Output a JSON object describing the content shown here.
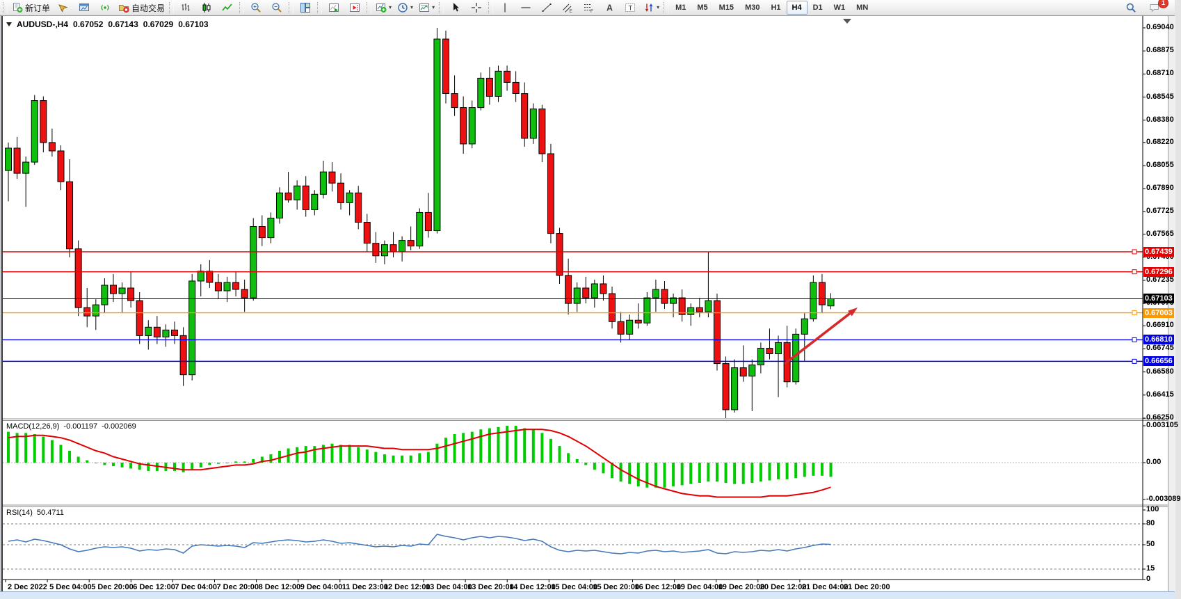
{
  "toolbar": {
    "groups": [
      {
        "items": [
          {
            "name": "new-order",
            "icon": "new-order",
            "label": "新订单"
          },
          {
            "name": "metaeditor",
            "icon": "metaeditor"
          },
          {
            "name": "new-chart",
            "icon": "new-chart"
          },
          {
            "name": "signals",
            "icon": "signals"
          },
          {
            "name": "autotrading",
            "icon": "autotrading",
            "label": "自动交易"
          }
        ]
      },
      {
        "items": [
          {
            "name": "bar-chart-mode",
            "icon": "bar-mode"
          },
          {
            "name": "candlestick-mode",
            "icon": "candle-mode"
          },
          {
            "name": "line-chart-mode",
            "icon": "line-mode"
          }
        ]
      },
      {
        "items": [
          {
            "name": "zoom-in",
            "icon": "zoom-in"
          },
          {
            "name": "zoom-out",
            "icon": "zoom-out"
          }
        ]
      },
      {
        "items": [
          {
            "name": "tile-windows",
            "icon": "tile-windows"
          }
        ]
      },
      {
        "items": [
          {
            "name": "auto-scroll",
            "icon": "auto-scroll"
          },
          {
            "name": "chart-shift",
            "icon": "chart-shift"
          }
        ]
      },
      {
        "items": [
          {
            "name": "indicators",
            "icon": "indicators",
            "dropdown": true
          },
          {
            "name": "periods",
            "icon": "periods",
            "dropdown": true
          },
          {
            "name": "templates",
            "icon": "templates",
            "dropdown": true
          }
        ]
      },
      {
        "items": [
          {
            "name": "cursor",
            "icon": "cursor"
          },
          {
            "name": "crosshair",
            "icon": "crosshair"
          }
        ]
      },
      {
        "items": [
          {
            "name": "vertical-line",
            "icon": "vline"
          },
          {
            "name": "horizontal-line",
            "icon": "hline"
          },
          {
            "name": "trendline",
            "icon": "trendline"
          },
          {
            "name": "equidistant-channel",
            "icon": "channel"
          },
          {
            "name": "fibonacci",
            "icon": "fibonacci"
          },
          {
            "name": "text",
            "icon": "text"
          },
          {
            "name": "text-label",
            "icon": "text-label"
          },
          {
            "name": "arrows",
            "icon": "arrows",
            "dropdown": true
          }
        ]
      }
    ],
    "timeframes": {
      "items": [
        "M1",
        "M5",
        "M15",
        "M30",
        "H1",
        "H4",
        "D1",
        "W1",
        "MN"
      ],
      "active": "H4"
    },
    "right": [
      {
        "name": "search",
        "icon": "search"
      },
      {
        "name": "notifications",
        "icon": "chat",
        "badge": "1"
      }
    ]
  },
  "status_bar": {
    "text": ""
  },
  "chart_data": [
    {
      "type": "candlestick",
      "title": "AUDUSD-,H4",
      "ohlc_display": {
        "open": "0.67052",
        "high": "0.67143",
        "low": "0.67029",
        "close": "0.67103"
      },
      "x_labels": [
        "2 Dec 2022",
        "5 Dec 04:00",
        "5 Dec 20:00",
        "6 Dec 12:00",
        "7 Dec 04:00",
        "7 Dec 20:00",
        "8 Dec 12:00",
        "9 Dec 04:00",
        "11 Dec 23:00",
        "12 Dec 12:00",
        "13 Dec 04:00",
        "13 Dec 20:00",
        "14 Dec 12:00",
        "15 Dec 04:00",
        "15 Dec 20:00",
        "16 Dec 12:00",
        "19 Dec 04:00",
        "19 Dec 20:00",
        "20 Dec 12:00",
        "21 Dec 04:00",
        "21 Dec 20:00"
      ],
      "ylim": [
        0.6625,
        0.6904
      ],
      "y_ticks": [
        "0.69040",
        "0.68875",
        "0.68710",
        "0.68545",
        "0.68380",
        "0.68220",
        "0.68055",
        "0.67890",
        "0.67725",
        "0.67565",
        "0.67400",
        "0.67235",
        "0.67070",
        "0.66910",
        "0.66745",
        "0.66580",
        "0.66415",
        "0.66250"
      ],
      "bull_color": "#0EBF0E",
      "bear_color": "#EE1111",
      "hlines": [
        {
          "price": 0.67439,
          "label": "0.67439",
          "color": "#E60000"
        },
        {
          "price": 0.67296,
          "label": "0.67296",
          "color": "#E60000"
        },
        {
          "price": 0.67003,
          "label": "0.67003",
          "color": "#FF9900"
        },
        {
          "price": 0.6681,
          "label": "0.66810",
          "color": "#0000E8"
        },
        {
          "price": 0.66656,
          "label": "0.66656",
          "color": "#0000E8"
        }
      ],
      "current_price": {
        "price": 0.67103,
        "label": "0.67103",
        "color": "#000000"
      },
      "arrow": {
        "from": [
          1128,
          523
        ],
        "to": [
          1233,
          442
        ],
        "color": "#D42A2A"
      },
      "ohlc": [
        [
          0.6802,
          0.6822,
          0.678,
          0.6818
        ],
        [
          0.6818,
          0.6826,
          0.6796,
          0.68
        ],
        [
          0.68,
          0.6812,
          0.6776,
          0.6808
        ],
        [
          0.6808,
          0.6856,
          0.6806,
          0.6852
        ],
        [
          0.6852,
          0.6855,
          0.6815,
          0.6822
        ],
        [
          0.6822,
          0.6832,
          0.6812,
          0.6816
        ],
        [
          0.6816,
          0.682,
          0.6788,
          0.6794
        ],
        [
          0.6794,
          0.681,
          0.674,
          0.6746
        ],
        [
          0.6746,
          0.6752,
          0.6698,
          0.6704
        ],
        [
          0.6704,
          0.6718,
          0.669,
          0.6698
        ],
        [
          0.6698,
          0.671,
          0.6688,
          0.6706
        ],
        [
          0.6706,
          0.6725,
          0.67,
          0.672
        ],
        [
          0.672,
          0.6728,
          0.6708,
          0.6714
        ],
        [
          0.6714,
          0.6722,
          0.67,
          0.6718
        ],
        [
          0.6718,
          0.673,
          0.6704,
          0.6709
        ],
        [
          0.6709,
          0.6715,
          0.6678,
          0.6684
        ],
        [
          0.6684,
          0.6695,
          0.6674,
          0.669
        ],
        [
          0.669,
          0.6698,
          0.6678,
          0.6683
        ],
        [
          0.6683,
          0.6692,
          0.6676,
          0.6688
        ],
        [
          0.6688,
          0.6694,
          0.6678,
          0.6684
        ],
        [
          0.6684,
          0.669,
          0.6648,
          0.6656
        ],
        [
          0.6656,
          0.6728,
          0.6652,
          0.6723
        ],
        [
          0.6723,
          0.6735,
          0.6712,
          0.673
        ],
        [
          0.673,
          0.6738,
          0.6718,
          0.6722
        ],
        [
          0.6722,
          0.6728,
          0.671,
          0.6716
        ],
        [
          0.6716,
          0.6726,
          0.6708,
          0.6722
        ],
        [
          0.6722,
          0.673,
          0.6712,
          0.6717
        ],
        [
          0.6717,
          0.6724,
          0.6701,
          0.6711
        ],
        [
          0.6711,
          0.6768,
          0.6709,
          0.6762
        ],
        [
          0.6762,
          0.677,
          0.6748,
          0.6754
        ],
        [
          0.6754,
          0.6772,
          0.675,
          0.6768
        ],
        [
          0.6768,
          0.679,
          0.6764,
          0.6786
        ],
        [
          0.6786,
          0.6801,
          0.6779,
          0.6781
        ],
        [
          0.6781,
          0.6795,
          0.6774,
          0.6791
        ],
        [
          0.6791,
          0.6798,
          0.6769,
          0.6774
        ],
        [
          0.6774,
          0.6788,
          0.677,
          0.6785
        ],
        [
          0.6785,
          0.6809,
          0.6782,
          0.6801
        ],
        [
          0.6801,
          0.6808,
          0.6787,
          0.6793
        ],
        [
          0.6793,
          0.68,
          0.6774,
          0.6779
        ],
        [
          0.6779,
          0.6788,
          0.677,
          0.6786
        ],
        [
          0.6786,
          0.6791,
          0.676,
          0.6765
        ],
        [
          0.6765,
          0.6771,
          0.6744,
          0.675
        ],
        [
          0.675,
          0.6758,
          0.6736,
          0.6741
        ],
        [
          0.6741,
          0.6752,
          0.6735,
          0.6749
        ],
        [
          0.6749,
          0.6758,
          0.674,
          0.6744
        ],
        [
          0.6744,
          0.6755,
          0.6737,
          0.6752
        ],
        [
          0.6752,
          0.6762,
          0.6745,
          0.6748
        ],
        [
          0.6748,
          0.6775,
          0.6746,
          0.6772
        ],
        [
          0.6772,
          0.6786,
          0.6754,
          0.6759
        ],
        [
          0.6759,
          0.6904,
          0.6757,
          0.6896
        ],
        [
          0.6896,
          0.6902,
          0.685,
          0.6857
        ],
        [
          0.6857,
          0.687,
          0.6841,
          0.6847
        ],
        [
          0.6847,
          0.6855,
          0.6814,
          0.6821
        ],
        [
          0.6821,
          0.6852,
          0.6818,
          0.6847
        ],
        [
          0.6847,
          0.6872,
          0.6845,
          0.6868
        ],
        [
          0.6868,
          0.6876,
          0.6849,
          0.6855
        ],
        [
          0.6855,
          0.6877,
          0.6851,
          0.6873
        ],
        [
          0.6873,
          0.6877,
          0.6859,
          0.6865
        ],
        [
          0.6865,
          0.6873,
          0.6851,
          0.6857
        ],
        [
          0.6857,
          0.6865,
          0.6819,
          0.6825
        ],
        [
          0.6825,
          0.685,
          0.6821,
          0.6846
        ],
        [
          0.6846,
          0.6849,
          0.6808,
          0.6814
        ],
        [
          0.6814,
          0.6821,
          0.675,
          0.6757
        ],
        [
          0.6757,
          0.6761,
          0.6721,
          0.6727
        ],
        [
          0.6727,
          0.6739,
          0.6699,
          0.6707
        ],
        [
          0.6707,
          0.6722,
          0.6701,
          0.6718
        ],
        [
          0.6718,
          0.6726,
          0.6707,
          0.6711
        ],
        [
          0.6711,
          0.6724,
          0.6704,
          0.6721
        ],
        [
          0.6721,
          0.6727,
          0.6709,
          0.6714
        ],
        [
          0.6714,
          0.6719,
          0.6689,
          0.6694
        ],
        [
          0.6694,
          0.6701,
          0.6679,
          0.6685
        ],
        [
          0.6685,
          0.6699,
          0.6681,
          0.6695
        ],
        [
          0.6695,
          0.6707,
          0.6689,
          0.6693
        ],
        [
          0.6693,
          0.6715,
          0.6691,
          0.6711
        ],
        [
          0.6711,
          0.6724,
          0.6701,
          0.6717
        ],
        [
          0.6717,
          0.6723,
          0.6703,
          0.6707
        ],
        [
          0.6707,
          0.6714,
          0.6697,
          0.6711
        ],
        [
          0.6711,
          0.6717,
          0.6694,
          0.6699
        ],
        [
          0.6699,
          0.6707,
          0.6691,
          0.6704
        ],
        [
          0.6704,
          0.6711,
          0.6697,
          0.6701
        ],
        [
          0.6701,
          0.6744,
          0.6697,
          0.6709
        ],
        [
          0.6709,
          0.6714,
          0.6659,
          0.6664
        ],
        [
          0.6664,
          0.6669,
          0.6625,
          0.6631
        ],
        [
          0.6631,
          0.6667,
          0.6629,
          0.6661
        ],
        [
          0.6661,
          0.6677,
          0.6651,
          0.6655
        ],
        [
          0.6655,
          0.6667,
          0.663,
          0.6663
        ],
        [
          0.6663,
          0.6679,
          0.6657,
          0.6675
        ],
        [
          0.6675,
          0.6689,
          0.6667,
          0.6671
        ],
        [
          0.6671,
          0.6684,
          0.664,
          0.6679
        ],
        [
          0.6679,
          0.6691,
          0.6647,
          0.6651
        ],
        [
          0.6651,
          0.6689,
          0.6649,
          0.6685
        ],
        [
          0.6685,
          0.67,
          0.6666,
          0.6696
        ],
        [
          0.6696,
          0.6727,
          0.6694,
          0.6722
        ],
        [
          0.6722,
          0.6728,
          0.67,
          0.6706
        ],
        [
          0.67052,
          0.67143,
          0.67029,
          0.67103
        ]
      ]
    },
    {
      "type": "bar",
      "title": "MACD(12,26,9)",
      "values_label": [
        "-0.001197",
        "-0.002069"
      ],
      "y_ticks": [
        {
          "label": "0.003105",
          "value": 0.003105
        },
        {
          "label": "0.00",
          "value": 0
        },
        {
          "label": "-0.003089",
          "value": -0.003089
        }
      ],
      "histogram_color": "#00CC00",
      "signal_color": "#E00000",
      "histogram": [
        0.0026,
        0.0025,
        0.0025,
        0.0024,
        0.0022,
        0.0019,
        0.0015,
        0.001,
        0.0005,
        0.0002,
        0.0,
        -0.0002,
        -0.0003,
        -0.0004,
        -0.0005,
        -0.0006,
        -0.0007,
        -0.0007,
        -0.0007,
        -0.0007,
        -0.0008,
        -0.0006,
        -0.0004,
        -0.0002,
        -0.0001,
        0.0,
        0.0001,
        0.0001,
        0.0003,
        0.0005,
        0.0007,
        0.001,
        0.0012,
        0.0013,
        0.0014,
        0.0014,
        0.0015,
        0.0016,
        0.0015,
        0.0015,
        0.0013,
        0.0011,
        0.0009,
        0.0007,
        0.0006,
        0.0006,
        0.0006,
        0.0008,
        0.0009,
        0.0016,
        0.0021,
        0.0024,
        0.0025,
        0.0026,
        0.0028,
        0.0029,
        0.003,
        0.0031,
        0.0031,
        0.0029,
        0.0028,
        0.0025,
        0.002,
        0.0014,
        0.0008,
        0.0003,
        -0.0002,
        -0.0006,
        -0.0009,
        -0.0013,
        -0.0016,
        -0.0018,
        -0.002,
        -0.0021,
        -0.0021,
        -0.0021,
        -0.002,
        -0.0019,
        -0.0018,
        -0.0017,
        -0.0016,
        -0.0016,
        -0.0017,
        -0.0018,
        -0.0018,
        -0.0017,
        -0.0016,
        -0.0015,
        -0.0014,
        -0.0014,
        -0.0013,
        -0.0012,
        -0.0011,
        -0.0011,
        -0.001197
      ],
      "signal": [
        0.0021,
        0.0022,
        0.0022,
        0.0023,
        0.0023,
        0.0022,
        0.0021,
        0.0019,
        0.0016,
        0.0013,
        0.001,
        0.0008,
        0.0005,
        0.0003,
        0.0001,
        -0.0001,
        -0.0002,
        -0.0003,
        -0.0004,
        -0.0005,
        -0.0006,
        -0.0006,
        -0.0006,
        -0.0005,
        -0.0004,
        -0.0003,
        -0.0002,
        -0.0002,
        -0.0001,
        0.0001,
        0.0002,
        0.0004,
        0.0006,
        0.0008,
        0.0009,
        0.0011,
        0.0012,
        0.0013,
        0.0014,
        0.0014,
        0.0014,
        0.0014,
        0.0013,
        0.0012,
        0.0012,
        0.0011,
        0.0011,
        0.0011,
        0.0011,
        0.0012,
        0.0014,
        0.0016,
        0.0018,
        0.002,
        0.0022,
        0.0024,
        0.0025,
        0.0026,
        0.0027,
        0.0028,
        0.0028,
        0.0028,
        0.0027,
        0.0025,
        0.0022,
        0.0018,
        0.0014,
        0.0009,
        0.0004,
        -0.0001,
        -0.0006,
        -0.001,
        -0.0014,
        -0.0017,
        -0.002,
        -0.0022,
        -0.0024,
        -0.0026,
        -0.0027,
        -0.0028,
        -0.0028,
        -0.0029,
        -0.0029,
        -0.0029,
        -0.0029,
        -0.0029,
        -0.0029,
        -0.0028,
        -0.0028,
        -0.0028,
        -0.0027,
        -0.0026,
        -0.0025,
        -0.0023,
        -0.002069
      ]
    },
    {
      "type": "line",
      "title": "RSI(14)",
      "value_label": "50.4711",
      "range": [
        0,
        100
      ],
      "levels": [
        80,
        50,
        15
      ],
      "y_ticks": [
        {
          "label": "100",
          "value": 100
        },
        {
          "label": "80",
          "value": 80
        },
        {
          "label": "50",
          "value": 50
        },
        {
          "label": "15",
          "value": 15
        },
        {
          "label": "0",
          "value": 0
        }
      ],
      "color": "#4478B8",
      "values": [
        55,
        57,
        54,
        58,
        56,
        53,
        50,
        44,
        40,
        42,
        45,
        47,
        46,
        47,
        45,
        41,
        43,
        42,
        44,
        43,
        38,
        48,
        50,
        49,
        48,
        49,
        48,
        46,
        53,
        52,
        54,
        56,
        57,
        56,
        54,
        55,
        57,
        55,
        52,
        53,
        51,
        49,
        47,
        48,
        47,
        49,
        48,
        51,
        50,
        65,
        62,
        60,
        57,
        60,
        62,
        60,
        62,
        61,
        59,
        56,
        58,
        55,
        47,
        42,
        40,
        42,
        41,
        42,
        40,
        38,
        37,
        39,
        38,
        41,
        42,
        40,
        41,
        39,
        40,
        41,
        43,
        38,
        37,
        40,
        39,
        40,
        42,
        41,
        43,
        41,
        44,
        46,
        49,
        51,
        50.47
      ]
    }
  ]
}
